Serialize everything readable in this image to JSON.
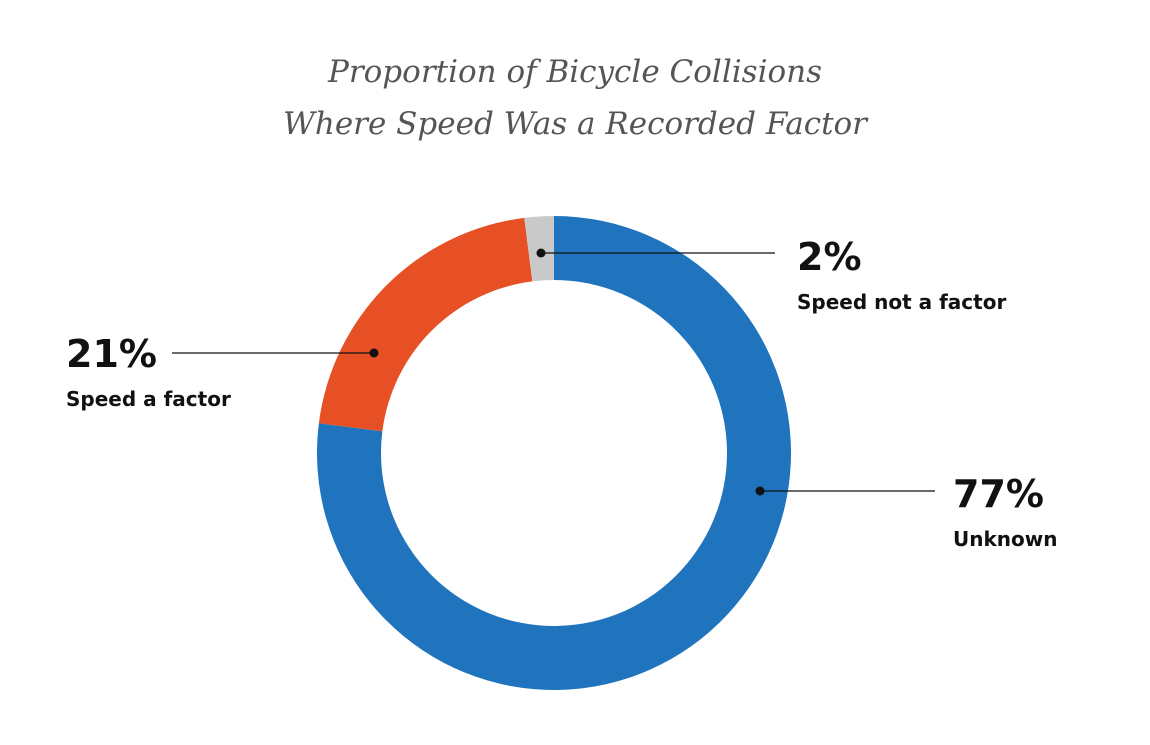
{
  "chart_data": {
    "type": "donut",
    "title": [
      "Proportion of Bicycle Collisions",
      "Where Speed Was a Recorded Factor"
    ],
    "categories": [
      "Unknown",
      "Speed a factor",
      "Speed not a factor"
    ],
    "values": [
      77,
      21,
      2
    ],
    "value_labels": [
      "77%",
      "21%",
      "2%"
    ],
    "colors": [
      "#1f74bd",
      "#e65024",
      "#c9c9c9"
    ]
  }
}
